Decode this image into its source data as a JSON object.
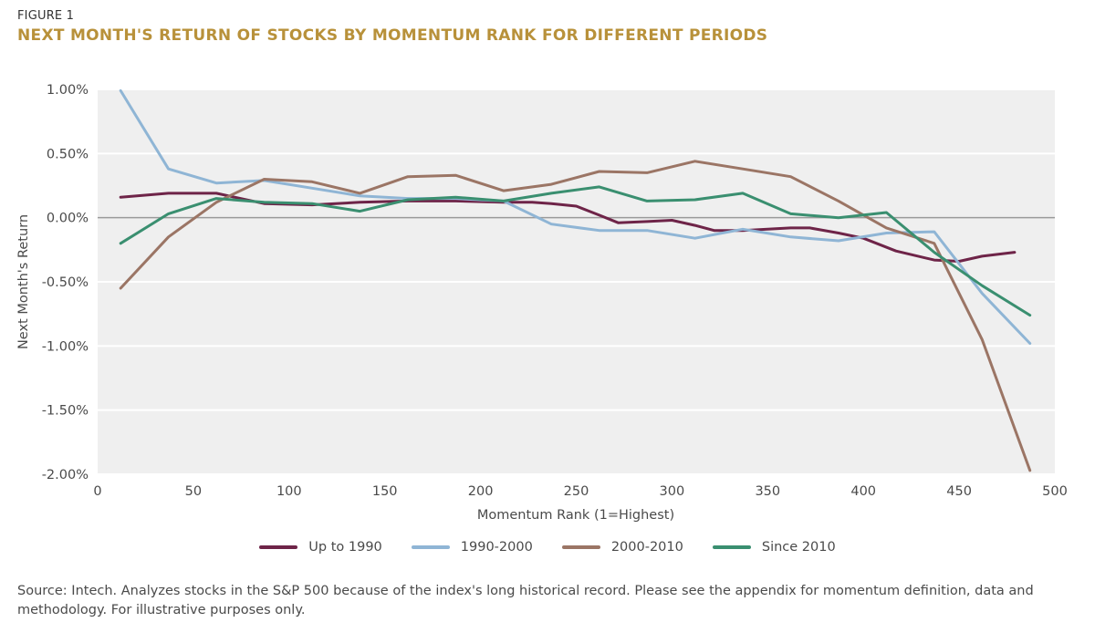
{
  "figure": {
    "label": "FIGURE 1",
    "title": "NEXT MONTH'S RETURN OF STOCKS BY MOMENTUM RANK FOR DIFFERENT PERIODS",
    "source": "Source: Intech. Analyzes stocks in the S&P 500 because of the index's long historical record. Please see the appendix for momentum definition, data and methodology. For illustrative purposes only."
  },
  "chart_data": {
    "type": "line",
    "xlabel": "Momentum Rank (1=Highest)",
    "ylabel": "Next Month's Return",
    "xlim": [
      0,
      500
    ],
    "ylim": [
      -2.0,
      1.0
    ],
    "x_ticks": [
      0,
      50,
      100,
      150,
      200,
      250,
      300,
      350,
      400,
      450,
      500
    ],
    "y_ticks": [
      {
        "value": 1.0,
        "label": "1.00%"
      },
      {
        "value": 0.5,
        "label": "0.50%"
      },
      {
        "value": 0.0,
        "label": "0.00%"
      },
      {
        "value": -0.5,
        "label": "-0.50%"
      },
      {
        "value": -1.0,
        "label": "-1.00%"
      },
      {
        "value": -1.5,
        "label": "-1.50%"
      },
      {
        "value": -2.0,
        "label": "-2.00%"
      }
    ],
    "grid": true,
    "legend_position": "bottom",
    "series": [
      {
        "name": "Up to 1990",
        "color": "#6e2448",
        "points": [
          [
            12,
            0.16
          ],
          [
            37,
            0.19
          ],
          [
            62,
            0.19
          ],
          [
            87,
            0.11
          ],
          [
            112,
            0.1
          ],
          [
            137,
            0.12
          ],
          [
            162,
            0.13
          ],
          [
            187,
            0.13
          ],
          [
            212,
            0.12
          ],
          [
            227,
            0.12
          ],
          [
            237,
            0.11
          ],
          [
            250,
            0.09
          ],
          [
            262,
            0.02
          ],
          [
            272,
            -0.04
          ],
          [
            287,
            -0.03
          ],
          [
            300,
            -0.02
          ],
          [
            312,
            -0.06
          ],
          [
            322,
            -0.1
          ],
          [
            337,
            -0.1
          ],
          [
            350,
            -0.09
          ],
          [
            362,
            -0.08
          ],
          [
            372,
            -0.08
          ],
          [
            387,
            -0.12
          ],
          [
            400,
            -0.16
          ],
          [
            417,
            -0.26
          ],
          [
            437,
            -0.33
          ],
          [
            450,
            -0.34
          ],
          [
            462,
            -0.3
          ],
          [
            479,
            -0.27
          ]
        ]
      },
      {
        "name": "1990-2000",
        "color": "#8fb5d5",
        "points": [
          [
            12,
            0.99
          ],
          [
            37,
            0.38
          ],
          [
            62,
            0.27
          ],
          [
            87,
            0.29
          ],
          [
            112,
            0.23
          ],
          [
            137,
            0.17
          ],
          [
            162,
            0.15
          ],
          [
            187,
            0.15
          ],
          [
            212,
            0.13
          ],
          [
            237,
            -0.05
          ],
          [
            262,
            -0.1
          ],
          [
            287,
            -0.1
          ],
          [
            312,
            -0.16
          ],
          [
            337,
            -0.09
          ],
          [
            362,
            -0.15
          ],
          [
            387,
            -0.18
          ],
          [
            412,
            -0.12
          ],
          [
            437,
            -0.11
          ],
          [
            462,
            -0.59
          ],
          [
            487,
            -0.98
          ]
        ]
      },
      {
        "name": "2000-2010",
        "color": "#9b7565",
        "points": [
          [
            12,
            -0.55
          ],
          [
            37,
            -0.15
          ],
          [
            62,
            0.12
          ],
          [
            87,
            0.3
          ],
          [
            112,
            0.28
          ],
          [
            137,
            0.19
          ],
          [
            162,
            0.32
          ],
          [
            187,
            0.33
          ],
          [
            212,
            0.21
          ],
          [
            237,
            0.26
          ],
          [
            262,
            0.36
          ],
          [
            287,
            0.35
          ],
          [
            312,
            0.44
          ],
          [
            337,
            0.38
          ],
          [
            362,
            0.32
          ],
          [
            387,
            0.13
          ],
          [
            412,
            -0.08
          ],
          [
            437,
            -0.2
          ],
          [
            462,
            -0.95
          ],
          [
            487,
            -1.97
          ]
        ]
      },
      {
        "name": "Since 2010",
        "color": "#3a8f70",
        "points": [
          [
            12,
            -0.2
          ],
          [
            37,
            0.03
          ],
          [
            62,
            0.15
          ],
          [
            87,
            0.12
          ],
          [
            112,
            0.11
          ],
          [
            137,
            0.05
          ],
          [
            162,
            0.14
          ],
          [
            187,
            0.16
          ],
          [
            212,
            0.13
          ],
          [
            237,
            0.19
          ],
          [
            262,
            0.24
          ],
          [
            287,
            0.13
          ],
          [
            312,
            0.14
          ],
          [
            337,
            0.19
          ],
          [
            362,
            0.03
          ],
          [
            387,
            0.0
          ],
          [
            412,
            0.04
          ],
          [
            437,
            -0.27
          ],
          [
            462,
            -0.53
          ],
          [
            487,
            -0.76
          ]
        ]
      }
    ]
  }
}
